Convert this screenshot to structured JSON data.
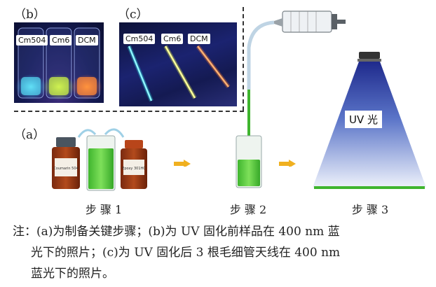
{
  "panels": {
    "b": {
      "label": "（b）",
      "vials": [
        "Cm504",
        "Cm6",
        "DCM"
      ]
    },
    "c": {
      "label": "（c）",
      "capillaries": [
        "Cm504",
        "Cm6",
        "DCM"
      ]
    },
    "a": {
      "label": "（a）"
    }
  },
  "steps": {
    "step1": {
      "label": "步 骤 1",
      "bottle_left_label": "Coumarin 504",
      "bottle_right_label": "Epoxy 301HC"
    },
    "step2": {
      "label": "步 骤 2"
    },
    "step3": {
      "label": "步 骤 3",
      "uv_label": "UV 光"
    }
  },
  "caption": {
    "line1": "注：(a)为制备关键步骤；(b)为 UV 固化前样品在 400 nm 蓝",
    "line2": "光下的照片；(c)为 UV 固化后 3 根毛细管天线在 400 nm",
    "line3": "蓝光下的照片。"
  },
  "colors": {
    "green_liquid": "#4cc93a",
    "arrow": "#f0b020",
    "uv_blue": "#1f2a8c"
  }
}
